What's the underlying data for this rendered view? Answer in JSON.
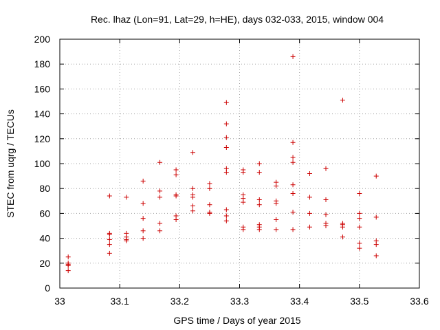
{
  "chart_data": {
    "type": "scatter",
    "title": "Rec. lhaz (Lon=91, Lat=29, h=HE), days 032-033, 2015, window 004",
    "xlabel": "GPS time / Days of year 2015",
    "ylabel": "STEC from uqrg / TECUs",
    "xlim": [
      33,
      33.6
    ],
    "ylim": [
      0,
      200
    ],
    "xticks": [
      "33",
      "33.1",
      "33.2",
      "33.3",
      "33.4",
      "33.5",
      "33.6"
    ],
    "yticks": [
      "0",
      "20",
      "40",
      "60",
      "80",
      "100",
      "120",
      "140",
      "160",
      "180",
      "200"
    ],
    "grid": true,
    "marker": "+",
    "color": "#cc0000",
    "series": [
      {
        "points": [
          [
            33.014,
            25
          ],
          [
            33.014,
            20
          ],
          [
            33.014,
            19
          ],
          [
            33.014,
            18
          ],
          [
            33.014,
            14
          ],
          [
            33.083,
            74
          ],
          [
            33.083,
            44
          ],
          [
            33.083,
            43
          ],
          [
            33.083,
            39
          ],
          [
            33.083,
            35
          ],
          [
            33.083,
            28
          ],
          [
            33.111,
            73
          ],
          [
            33.111,
            44
          ],
          [
            33.111,
            41
          ],
          [
            33.111,
            39
          ],
          [
            33.111,
            38
          ],
          [
            33.139,
            86
          ],
          [
            33.139,
            68
          ],
          [
            33.139,
            56
          ],
          [
            33.139,
            46
          ],
          [
            33.139,
            40
          ],
          [
            33.167,
            101
          ],
          [
            33.167,
            78
          ],
          [
            33.167,
            73
          ],
          [
            33.167,
            52
          ],
          [
            33.167,
            46
          ],
          [
            33.194,
            95
          ],
          [
            33.194,
            91
          ],
          [
            33.194,
            75
          ],
          [
            33.194,
            74
          ],
          [
            33.194,
            58
          ],
          [
            33.194,
            55
          ],
          [
            33.222,
            109
          ],
          [
            33.222,
            80
          ],
          [
            33.222,
            75
          ],
          [
            33.222,
            73
          ],
          [
            33.222,
            66
          ],
          [
            33.222,
            62
          ],
          [
            33.25,
            84
          ],
          [
            33.25,
            80
          ],
          [
            33.25,
            67
          ],
          [
            33.25,
            61
          ],
          [
            33.25,
            60
          ],
          [
            33.278,
            149
          ],
          [
            33.278,
            132
          ],
          [
            33.278,
            121
          ],
          [
            33.278,
            113
          ],
          [
            33.278,
            96
          ],
          [
            33.278,
            93
          ],
          [
            33.278,
            63
          ],
          [
            33.278,
            58
          ],
          [
            33.278,
            54
          ],
          [
            33.306,
            95
          ],
          [
            33.306,
            93
          ],
          [
            33.306,
            75
          ],
          [
            33.306,
            72
          ],
          [
            33.306,
            69
          ],
          [
            33.306,
            49
          ],
          [
            33.306,
            47
          ],
          [
            33.333,
            100
          ],
          [
            33.333,
            93
          ],
          [
            33.333,
            71
          ],
          [
            33.333,
            67
          ],
          [
            33.333,
            51
          ],
          [
            33.333,
            49
          ],
          [
            33.333,
            47
          ],
          [
            33.361,
            85
          ],
          [
            33.361,
            82
          ],
          [
            33.361,
            70
          ],
          [
            33.361,
            68
          ],
          [
            33.361,
            55
          ],
          [
            33.361,
            47
          ],
          [
            33.389,
            186
          ],
          [
            33.389,
            117
          ],
          [
            33.389,
            105
          ],
          [
            33.389,
            101
          ],
          [
            33.389,
            83
          ],
          [
            33.389,
            76
          ],
          [
            33.389,
            61
          ],
          [
            33.389,
            47
          ],
          [
            33.417,
            92
          ],
          [
            33.417,
            73
          ],
          [
            33.417,
            60
          ],
          [
            33.417,
            49
          ],
          [
            33.444,
            96
          ],
          [
            33.444,
            71
          ],
          [
            33.444,
            59
          ],
          [
            33.444,
            52
          ],
          [
            33.444,
            50
          ],
          [
            33.472,
            151
          ],
          [
            33.472,
            52
          ],
          [
            33.472,
            51
          ],
          [
            33.472,
            49
          ],
          [
            33.472,
            41
          ],
          [
            33.5,
            76
          ],
          [
            33.5,
            60
          ],
          [
            33.5,
            56
          ],
          [
            33.5,
            49
          ],
          [
            33.5,
            36
          ],
          [
            33.5,
            32
          ],
          [
            33.528,
            90
          ],
          [
            33.528,
            57
          ],
          [
            33.528,
            38
          ],
          [
            33.528,
            35
          ],
          [
            33.528,
            26
          ]
        ]
      }
    ]
  }
}
